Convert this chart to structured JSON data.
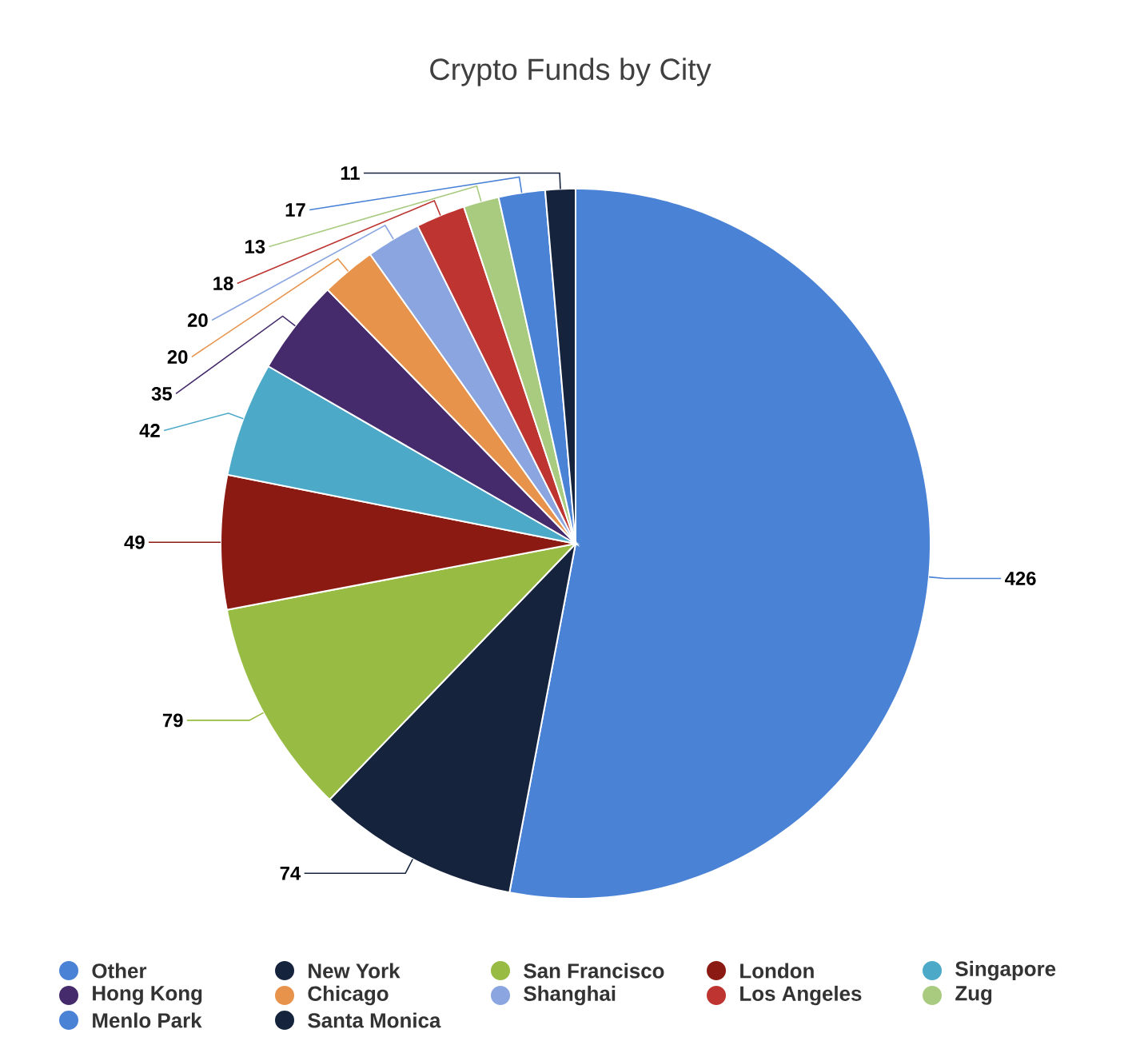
{
  "chart_data": {
    "type": "pie",
    "title": "Crypto Funds by City",
    "categories": [
      "Other",
      "New York",
      "San Francisco",
      "London",
      "Singapore",
      "Hong Kong",
      "Chicago",
      "Shanghai",
      "Los Angeles",
      "Zug",
      "Menlo Park",
      "Santa Monica"
    ],
    "values": [
      426,
      74,
      79,
      49,
      42,
      35,
      20,
      20,
      18,
      13,
      17,
      11
    ],
    "colors": [
      "#4a82d6",
      "#15233d",
      "#98bb43",
      "#8a1a12",
      "#4ca9c8",
      "#452b6b",
      "#e8934c",
      "#8aa5e0",
      "#bd3430",
      "#a9cb80",
      "#4a82d6",
      "#15233d"
    ],
    "data_labels": true,
    "legend": "bottom"
  }
}
